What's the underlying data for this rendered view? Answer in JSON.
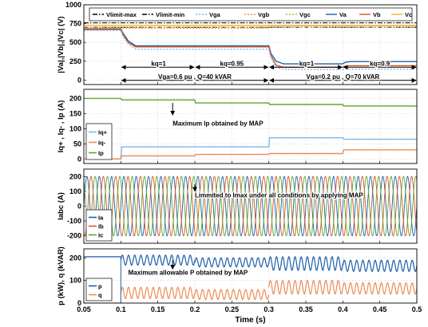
{
  "chart_data": [
    {
      "type": "line",
      "ylabel": "|Va|,|Vb|,|Vc| (V)",
      "ylim": [
        -60,
        1000
      ],
      "yticks": [
        0,
        250,
        500,
        750,
        1000
      ],
      "legend": {
        "placement": "top",
        "items": [
          {
            "label": "Vlimit-max",
            "color": "#000000",
            "dash": "6 2 1.5 2"
          },
          {
            "label": "Vlimit-min",
            "color": "#000000",
            "dash": "6 2 1.5 2"
          },
          {
            "label": "Vga",
            "color": "#7ab8e6",
            "dash": "2 2"
          },
          {
            "label": "Vgb",
            "color": "#e88d5a",
            "dash": "2 2"
          },
          {
            "label": "Vgc",
            "color": "#c8a837",
            "dash": "2 2"
          },
          {
            "label": "Va",
            "color": "#1f5fa8",
            "dash": ""
          },
          {
            "label": "Vb",
            "color": "#d9541e",
            "dash": ""
          },
          {
            "label": "Vc",
            "color": "#f0b429",
            "dash": ""
          }
        ]
      },
      "reference_lines": [
        {
          "name": "Vlimit-max",
          "y": 760
        },
        {
          "name": "Vlimit-min",
          "y": 700
        }
      ],
      "series": [
        {
          "name": "Va",
          "color": "#1f5fa8",
          "x": [
            0.05,
            0.1,
            0.103,
            0.11,
            0.12,
            0.3,
            0.303,
            0.31,
            0.32,
            0.4,
            0.403,
            0.41,
            0.5
          ],
          "y": [
            680,
            680,
            620,
            520,
            455,
            455,
            350,
            250,
            215,
            215,
            235,
            245,
            245
          ]
        },
        {
          "name": "Vb",
          "color": "#d9541e",
          "x": [
            0.05,
            0.1,
            0.103,
            0.11,
            0.12,
            0.3,
            0.303,
            0.31,
            0.32,
            0.4,
            0.403,
            0.41,
            0.5
          ],
          "y": [
            670,
            670,
            600,
            500,
            440,
            440,
            320,
            195,
            170,
            170,
            185,
            190,
            190
          ]
        },
        {
          "name": "Vc",
          "color": "#f0b429",
          "x": [
            0.05,
            0.5
          ],
          "y": [
            725,
            725
          ]
        },
        {
          "name": "Vga",
          "color": "#7ab8e6",
          "x": [
            0.05,
            0.1,
            0.103,
            0.11,
            0.12,
            0.3,
            0.303,
            0.31,
            0.32,
            0.4,
            0.403,
            0.41,
            0.5
          ],
          "y": [
            660,
            660,
            580,
            480,
            410,
            410,
            300,
            170,
            140,
            140,
            145,
            145,
            145
          ]
        },
        {
          "name": "Vgb",
          "color": "#e88d5a",
          "x": [
            0.05,
            0.5
          ],
          "y": [
            700,
            700
          ]
        },
        {
          "name": "Vgc",
          "color": "#c8a837",
          "x": [
            0.05,
            0.3,
            0.303,
            0.5
          ],
          "y": [
            690,
            690,
            720,
            720
          ]
        }
      ],
      "annotations": [
        {
          "text": "kq=1",
          "x": 0.151,
          "y": 170
        },
        {
          "text": "kq=0.95",
          "x": 0.25,
          "y": 170
        },
        {
          "text": "kq=1",
          "x": 0.351,
          "y": 170
        },
        {
          "text": "kq=0.9",
          "x": 0.45,
          "y": 170
        },
        {
          "text": "Vga=0.6 pu ,  Q=40 kVAR",
          "x": 0.2,
          "y": -5
        },
        {
          "text": "Vga=0.2 pu ,   Q=70 kVAR",
          "x": 0.4,
          "y": -5
        }
      ],
      "arrows": [
        {
          "y": 170,
          "x0": 0.1,
          "x1": 0.2
        },
        {
          "y": 170,
          "x0": 0.2,
          "x1": 0.3
        },
        {
          "y": 170,
          "x0": 0.3,
          "x1": 0.4
        },
        {
          "y": 170,
          "x0": 0.4,
          "x1": 0.5
        },
        {
          "y": -5,
          "x0": 0.1,
          "x1": 0.3
        },
        {
          "y": -5,
          "x0": 0.3,
          "x1": 0.5
        }
      ]
    },
    {
      "type": "line",
      "ylabel": "Iq+ , Iq- , Ip (A)",
      "ylim": [
        -15,
        230
      ],
      "yticks": [
        0,
        50,
        100,
        150,
        200
      ],
      "legend": {
        "placement": "left",
        "items": [
          {
            "label": "Iq+",
            "color": "#7ab8e6",
            "dash": ""
          },
          {
            "label": "Iq-",
            "color": "#e88d5a",
            "dash": ""
          },
          {
            "label": "Ip",
            "color": "#5aa832",
            "dash": ""
          }
        ]
      },
      "series": [
        {
          "name": "Iq+",
          "color": "#7ab8e6",
          "x": [
            0.05,
            0.1,
            0.101,
            0.3,
            0.301,
            0.4,
            0.401,
            0.5
          ],
          "y": [
            0,
            0,
            40,
            40,
            70,
            70,
            65,
            65
          ]
        },
        {
          "name": "Iq-",
          "color": "#e88d5a",
          "x": [
            0.05,
            0.1,
            0.101,
            0.2,
            0.201,
            0.3,
            0.301,
            0.4,
            0.401,
            0.5
          ],
          "y": [
            0,
            0,
            10,
            10,
            15,
            15,
            18,
            18,
            30,
            30
          ]
        },
        {
          "name": "Ip",
          "color": "#5aa832",
          "x": [
            0.05,
            0.1,
            0.101,
            0.2,
            0.201,
            0.3,
            0.301,
            0.4,
            0.401,
            0.5
          ],
          "y": [
            200,
            200,
            195,
            195,
            185,
            185,
            180,
            180,
            175,
            175
          ]
        }
      ],
      "annotations": [
        {
          "text": "Maximum Ip obtained by MAP",
          "x": 0.17,
          "y": 110
        }
      ],
      "arrows": [
        {
          "x": 0.17,
          "y0": 185,
          "y1": 145,
          "vertical": true
        }
      ]
    },
    {
      "type": "line",
      "ylabel": "Iabc (A)",
      "ylim": [
        -250,
        250
      ],
      "yticks": [
        -200,
        -100,
        0,
        100,
        200
      ],
      "frequency_hz": 60,
      "legend": {
        "placement": "left",
        "items": [
          {
            "label": "Ia",
            "color": "#1f5fa8",
            "dash": ""
          },
          {
            "label": "Ib",
            "color": "#d9541e",
            "dash": ""
          },
          {
            "label": "Ic",
            "color": "#5aa832",
            "dash": ""
          }
        ]
      },
      "series": [
        {
          "name": "Ia",
          "color": "#1f5fa8",
          "phase_deg": 0,
          "amplitude": 200
        },
        {
          "name": "Ib",
          "color": "#d9541e",
          "phase_deg": -120,
          "amplitude": 200
        },
        {
          "name": "Ic",
          "color": "#5aa832",
          "phase_deg": 120,
          "amplitude": 200
        }
      ],
      "annotations": [
        {
          "text": "Limmited to Imax under all conditions by applying MAP",
          "x": 0.2,
          "y": 60
        }
      ],
      "arrows": [
        {
          "x": 0.2,
          "y0": 150,
          "y1": 100,
          "vertical": true
        }
      ]
    },
    {
      "type": "line",
      "ylabel": "p (kW), q (kVAR)",
      "xlabel": "Time (s)",
      "xlim": [
        0.05,
        0.5
      ],
      "xticks": [
        "0.05",
        "0.1",
        "0.15",
        "0.2",
        "0.25",
        "0.3",
        "0.35",
        "0.4",
        "0.45",
        "0.5"
      ],
      "ylim": [
        0,
        240
      ],
      "yticks": [
        0,
        100,
        200
      ],
      "legend": {
        "placement": "left",
        "items": [
          {
            "label": "p",
            "color": "#1f5fa8",
            "dash": ""
          },
          {
            "label": "q",
            "color": "#e88d5a",
            "dash": ""
          }
        ]
      },
      "segments": [
        {
          "name": "p",
          "x0": 0.05,
          "x1": 0.1,
          "mean": 205,
          "amp": 0
        },
        {
          "name": "p",
          "x0": 0.1,
          "x1": 0.2,
          "mean": 190,
          "amp": 22
        },
        {
          "name": "p",
          "x0": 0.2,
          "x1": 0.3,
          "mean": 180,
          "amp": 20
        },
        {
          "name": "p",
          "x0": 0.3,
          "x1": 0.4,
          "mean": 175,
          "amp": 30
        },
        {
          "name": "p",
          "x0": 0.4,
          "x1": 0.5,
          "mean": 165,
          "amp": 25
        },
        {
          "name": "q",
          "x0": 0.05,
          "x1": 0.1,
          "mean": 0,
          "amp": 0
        },
        {
          "name": "q",
          "x0": 0.1,
          "x1": 0.2,
          "mean": 45,
          "amp": 25
        },
        {
          "name": "q",
          "x0": 0.2,
          "x1": 0.3,
          "mean": 38,
          "amp": 22
        },
        {
          "name": "q",
          "x0": 0.3,
          "x1": 0.4,
          "mean": 70,
          "amp": 30
        },
        {
          "name": "q",
          "x0": 0.4,
          "x1": 0.5,
          "mean": 65,
          "amp": 25
        }
      ],
      "annotations": [
        {
          "text": "Maximum allowable P obtained by MAP",
          "x": 0.11,
          "y": 125
        }
      ],
      "arrows": [
        {
          "x": 0.17,
          "y0": 190,
          "y1": 150,
          "vertical": true
        }
      ]
    }
  ]
}
